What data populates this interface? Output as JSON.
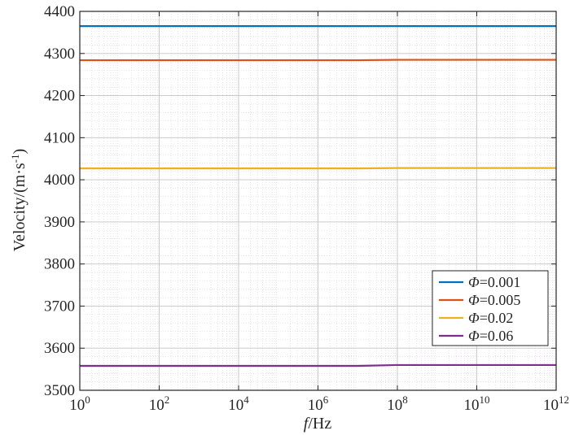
{
  "chart_data": {
    "type": "line",
    "x_scale": "log",
    "xlim": [
      1,
      1000000000000.0
    ],
    "ylim": [
      3500,
      4400
    ],
    "grid": true,
    "minor_grid": true,
    "legend_position": "bottom-right",
    "xlabel": {
      "italic": "f",
      "rest": "/Hz"
    },
    "ylabel": {
      "main": "Velocity/(m·s",
      "sup": "-1",
      "close": ")"
    },
    "x_ticks": [
      {
        "value": 1,
        "base": "10",
        "exp": "0"
      },
      {
        "value": 100,
        "base": "10",
        "exp": "2"
      },
      {
        "value": 10000,
        "base": "10",
        "exp": "4"
      },
      {
        "value": 1000000,
        "base": "10",
        "exp": "6"
      },
      {
        "value": 100000000,
        "base": "10",
        "exp": "8"
      },
      {
        "value": 10000000000,
        "base": "10",
        "exp": "10"
      },
      {
        "value": 1000000000000,
        "base": "10",
        "exp": "12"
      }
    ],
    "y_ticks": [
      {
        "value": 3500,
        "label": "3500"
      },
      {
        "value": 3600,
        "label": "3600"
      },
      {
        "value": 3700,
        "label": "3700"
      },
      {
        "value": 3800,
        "label": "3800"
      },
      {
        "value": 3900,
        "label": "3900"
      },
      {
        "value": 4000,
        "label": "4000"
      },
      {
        "value": 4100,
        "label": "4100"
      },
      {
        "value": 4200,
        "label": "4200"
      },
      {
        "value": 4300,
        "label": "4300"
      },
      {
        "value": 4400,
        "label": "4400"
      }
    ],
    "series": [
      {
        "name_symbol": "Φ",
        "name_value": "=0.001",
        "color": "#0072BD",
        "x": [
          1,
          1000.0,
          1000000.0,
          10000000.0,
          100000000.0,
          10000000000.0,
          1000000000000.0
        ],
        "y": [
          4365,
          4365,
          4365,
          4365,
          4365,
          4365,
          4365
        ]
      },
      {
        "name_symbol": "Φ",
        "name_value": "=0.005",
        "color": "#D95319",
        "x": [
          1,
          1000.0,
          1000000.0,
          10000000.0,
          100000000.0,
          10000000000.0,
          1000000000000.0
        ],
        "y": [
          4284,
          4284,
          4284,
          4284,
          4285,
          4285,
          4285
        ]
      },
      {
        "name_symbol": "Φ",
        "name_value": "=0.02",
        "color": "#EDB120",
        "x": [
          1,
          1000.0,
          1000000.0,
          10000000.0,
          100000000.0,
          10000000000.0,
          1000000000000.0
        ],
        "y": [
          4027,
          4027,
          4027,
          4027,
          4028,
          4028,
          4028
        ]
      },
      {
        "name_symbol": "Φ",
        "name_value": "=0.06",
        "color": "#7E2F8E",
        "x": [
          1,
          1000.0,
          1000000.0,
          10000000.0,
          100000000.0,
          10000000000.0,
          1000000000000.0
        ],
        "y": [
          3558,
          3558,
          3558,
          3558,
          3560,
          3560,
          3560
        ]
      }
    ]
  }
}
